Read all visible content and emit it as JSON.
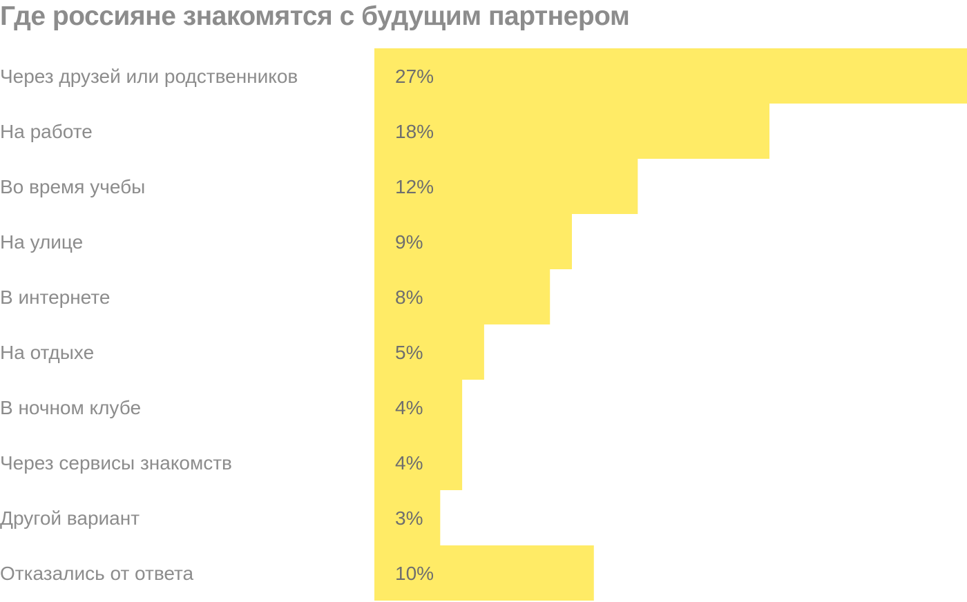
{
  "chart_data": {
    "type": "bar",
    "orientation": "horizontal",
    "title": "Где россияне знакомятся с будущим партнером",
    "categories": [
      "Через друзей или родственников",
      "На работе",
      "Во время учебы",
      "На улице",
      "В интернете",
      "На отдыхе",
      "В ночном клубе",
      "Через сервисы знакомств",
      "Другой вариант",
      "Отказались от ответа"
    ],
    "values": [
      27,
      18,
      12,
      9,
      8,
      5,
      4,
      4,
      3,
      10
    ],
    "value_labels": [
      "27%",
      "18%",
      "12%",
      "9%",
      "8%",
      "5%",
      "4%",
      "4%",
      "3%",
      "10%"
    ],
    "unit": "%",
    "xlim": [
      0,
      27
    ],
    "bar_color": "#FFEB66",
    "grid": false,
    "legend": "none"
  }
}
